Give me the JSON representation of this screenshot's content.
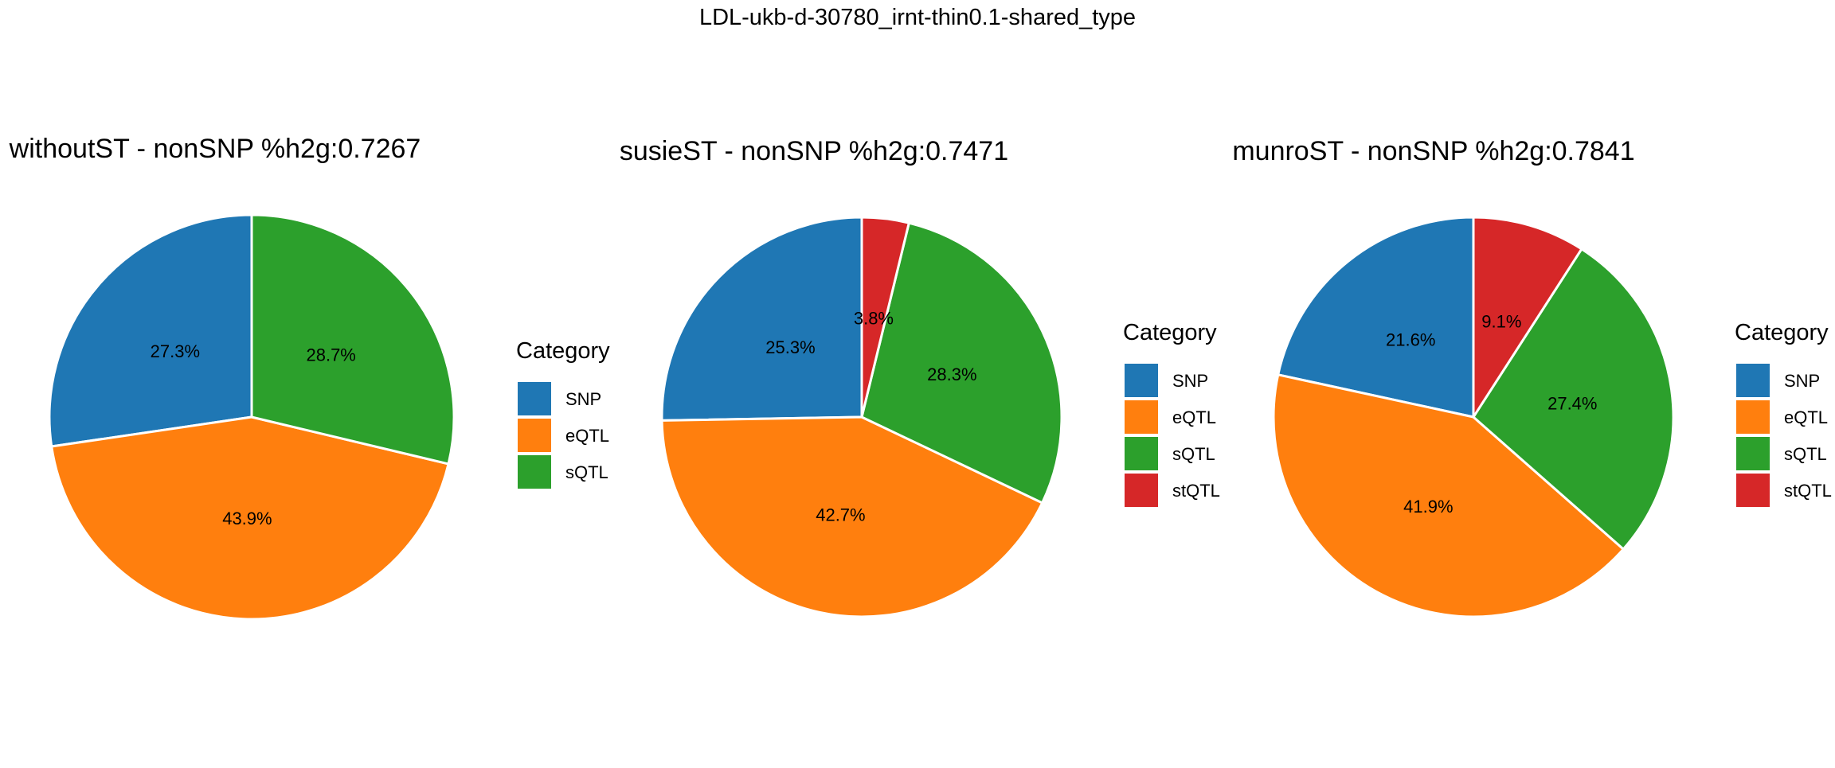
{
  "suptitle": "LDL-ukb-d-30780_irnt-thin0.1-shared_type",
  "colors": {
    "SNP": "#1f77b4",
    "eQTL": "#ff7f0e",
    "sQTL": "#2ca02c",
    "stQTL": "#d62728"
  },
  "chart_data": [
    {
      "type": "pie",
      "title": "withoutST - nonSNP %h2g:0.7267",
      "legend_title": "Category",
      "legend_placement": "right",
      "start_angle": "12 o'clock",
      "direction": "counterclockwise",
      "slices": [
        {
          "label": "SNP",
          "value": 27.3,
          "text": "27.3%"
        },
        {
          "label": "eQTL",
          "value": 43.9,
          "text": "43.9%"
        },
        {
          "label": "sQTL",
          "value": 28.7,
          "text": "28.7%"
        }
      ]
    },
    {
      "type": "pie",
      "title": "susieST - nonSNP %h2g:0.7471",
      "legend_title": "Category",
      "legend_placement": "right",
      "start_angle": "12 o'clock",
      "direction": "counterclockwise",
      "slices": [
        {
          "label": "SNP",
          "value": 25.3,
          "text": "25.3%"
        },
        {
          "label": "eQTL",
          "value": 42.7,
          "text": "42.7%"
        },
        {
          "label": "sQTL",
          "value": 28.3,
          "text": "28.3%"
        },
        {
          "label": "stQTL",
          "value": 3.8,
          "text": "3.8%"
        }
      ]
    },
    {
      "type": "pie",
      "title": "munroST - nonSNP %h2g:0.7841",
      "legend_title": "Category",
      "legend_placement": "right",
      "start_angle": "12 o'clock",
      "direction": "counterclockwise",
      "slices": [
        {
          "label": "SNP",
          "value": 21.6,
          "text": "21.6%"
        },
        {
          "label": "eQTL",
          "value": 41.9,
          "text": "41.9%"
        },
        {
          "label": "sQTL",
          "value": 27.4,
          "text": "27.4%"
        },
        {
          "label": "stQTL",
          "value": 9.1,
          "text": "9.1%"
        }
      ]
    }
  ]
}
